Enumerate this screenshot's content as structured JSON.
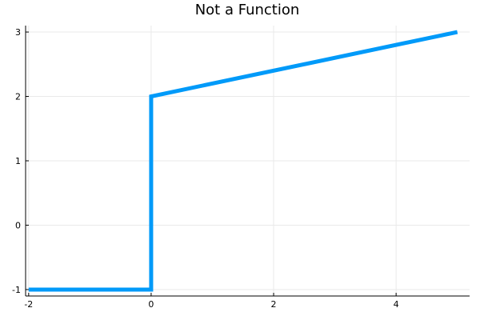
{
  "chart_data": {
    "type": "line",
    "title": "Not a Function",
    "xlabel": "",
    "ylabel": "",
    "xlim": [
      -2.05,
      5.2
    ],
    "ylim": [
      -1.1,
      3.1
    ],
    "x_ticks": [
      -2,
      0,
      2,
      4
    ],
    "y_ticks": [
      -1,
      0,
      1,
      2,
      3
    ],
    "grid": true,
    "legend": "none",
    "series": [
      {
        "color": "#009af9",
        "points": [
          {
            "x": -2,
            "y": -1
          },
          {
            "x": 0,
            "y": -1
          },
          {
            "x": 0,
            "y": 2
          },
          {
            "x": 5,
            "y": 3
          }
        ]
      }
    ]
  }
}
